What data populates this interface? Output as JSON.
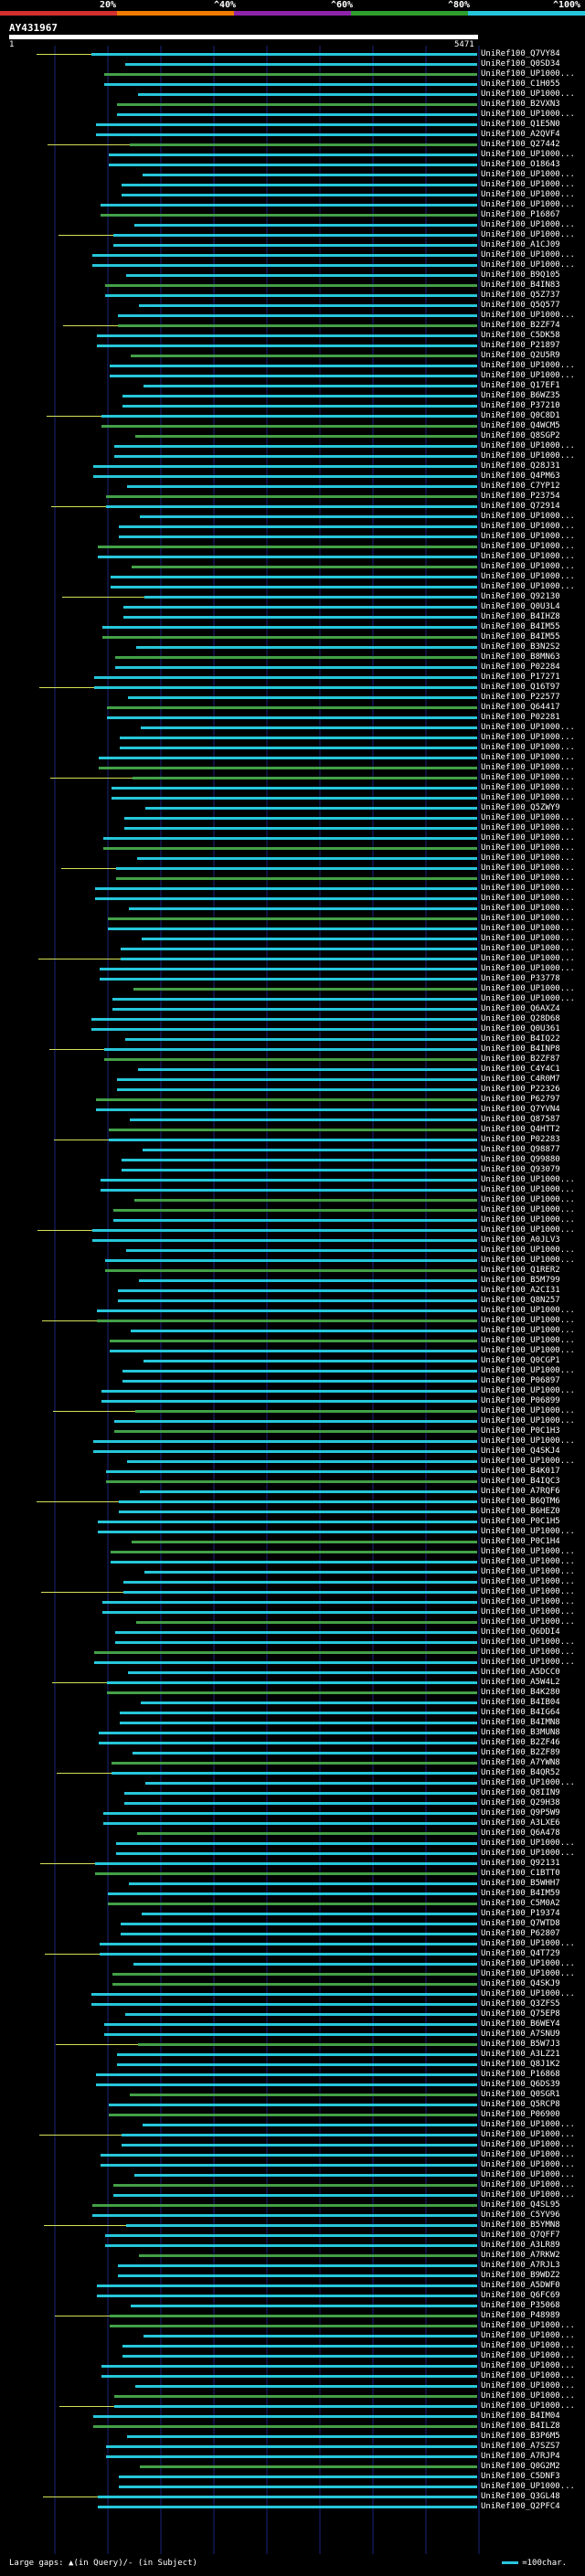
{
  "scale": {
    "labels": [
      "20%",
      "^40%",
      "^60%",
      "^80%",
      "^100%"
    ],
    "bands": [
      "#d32f2f",
      "#ef7c00",
      "#8e24aa",
      "#2e9e2e",
      "#26c6da"
    ]
  },
  "query": {
    "name": "AY431967",
    "start": "1",
    "end": "5471"
  },
  "colors": {
    "high": "#26c6da",
    "mid": "#43a047",
    "gap": "#d4e157"
  },
  "footer": {
    "legend": "Large gaps: ▲(in Query)/- (in Subject)",
    "unit": "=100char."
  },
  "hits": [
    "UniRef100_Q7VY84",
    "UniRef100_Q0SD34",
    "UniRef100_UP1000...",
    "UniRef100_C1H055",
    "UniRef100_UP1000...",
    "UniRef100_B2VXN3",
    "UniRef100_UP1000...",
    "UniRef100_Q1E5N0",
    "UniRef100_A2QVF4",
    "UniRef100_Q27442",
    "UniRef100_UP1000...",
    "UniRef100_O18643",
    "UniRef100_UP1000...",
    "UniRef100_UP1000...",
    "UniRef100_UP1000...",
    "UniRef100_UP1000...",
    "UniRef100_P16867",
    "UniRef100_UP1000...",
    "UniRef100_UP1000...",
    "UniRef100_A1CJ09",
    "UniRef100_UP1000...",
    "UniRef100_UP1000...",
    "UniRef100_B9Q105",
    "UniRef100_B4IN83",
    "UniRef100_Q5Z737",
    "UniRef100_Q5Q577",
    "UniRef100_UP1000...",
    "UniRef100_B2ZF74",
    "UniRef100_C5DK58",
    "UniRef100_P21897",
    "UniRef100_Q2U5R9",
    "UniRef100_UP1000...",
    "UniRef100_UP1000...",
    "UniRef100_Q17EF1",
    "UniRef100_B6WZ35",
    "UniRef100_P37210",
    "UniRef100_Q0C8D1",
    "UniRef100_Q4WCM5",
    "UniRef100_Q8SGP2",
    "UniRef100_UP1000...",
    "UniRef100_UP1000...",
    "UniRef100_Q28J31",
    "UniRef100_Q4PM63",
    "UniRef100_C7YP12",
    "UniRef100_P23754",
    "UniRef100_Q72914",
    "UniRef100_UP1000...",
    "UniRef100_UP1000...",
    "UniRef100_UP1000...",
    "UniRef100_UP1000...",
    "UniRef100_UP1000...",
    "UniRef100_UP1000...",
    "UniRef100_UP1000...",
    "UniRef100_UP1000...",
    "UniRef100_Q92130",
    "UniRef100_Q0U3L4",
    "UniRef100_B4IHZ8",
    "UniRef100_B4IM55",
    "UniRef100_B4IM55",
    "UniRef100_B3N2S2",
    "UniRef100_B8MN63",
    "UniRef100_P02284",
    "UniRef100_P17271",
    "UniRef100_Q16T97",
    "UniRef100_P22577",
    "UniRef100_Q64417",
    "UniRef100_P02281",
    "UniRef100_UP1000...",
    "UniRef100_UP1000...",
    "UniRef100_UP1000...",
    "UniRef100_UP1000...",
    "UniRef100_UP1000...",
    "UniRef100_UP1000...",
    "UniRef100_UP1000...",
    "UniRef100_UP1000...",
    "UniRef100_Q5ZWY9",
    "UniRef100_UP1000...",
    "UniRef100_UP1000...",
    "UniRef100_UP1000...",
    "UniRef100_UP1000...",
    "UniRef100_UP1000...",
    "UniRef100_UP1000...",
    "UniRef100_UP1000...",
    "UniRef100_UP1000...",
    "UniRef100_UP1000...",
    "UniRef100_UP1000...",
    "UniRef100_UP1000...",
    "UniRef100_UP1000...",
    "UniRef100_UP1000...",
    "UniRef100_UP1000...",
    "UniRef100_UP1000...",
    "UniRef100_UP1000...",
    "UniRef100_P33778",
    "UniRef100_UP1000...",
    "UniRef100_UP1000...",
    "UniRef100_Q6AXZ4",
    "UniRef100_Q28D68",
    "UniRef100_Q0U361",
    "UniRef100_B4IQ22",
    "UniRef100_B4INP8",
    "UniRef100_B2ZF87",
    "UniRef100_C4Y4C1",
    "UniRef100_C4R0M7",
    "UniRef100_P22326",
    "UniRef100_P62797",
    "UniRef100_Q7YVN4",
    "UniRef100_Q87587",
    "UniRef100_Q4HTT2",
    "UniRef100_P02283",
    "UniRef100_Q98877",
    "UniRef100_Q99880",
    "UniRef100_Q93079",
    "UniRef100_UP1000...",
    "UniRef100_UP1000...",
    "UniRef100_UP1000...",
    "UniRef100_UP1000...",
    "UniRef100_UP1000...",
    "UniRef100_UP1000...",
    "UniRef100_A0JLV3",
    "UniRef100_UP1000...",
    "UniRef100_UP1000...",
    "UniRef100_Q1RER2",
    "UniRef100_B5M799",
    "UniRef100_A2CI31",
    "UniRef100_Q8N257",
    "UniRef100_UP1000...",
    "UniRef100_UP1000...",
    "UniRef100_UP1000...",
    "UniRef100_UP1000...",
    "UniRef100_UP1000...",
    "UniRef100_Q0CGP1",
    "UniRef100_UP1000...",
    "UniRef100_P06897",
    "UniRef100_UP1000...",
    "UniRef100_P06899",
    "UniRef100_UP1000...",
    "UniRef100_UP1000...",
    "UniRef100_P0C1H3",
    "UniRef100_UP1000...",
    "UniRef100_Q4SKJ4",
    "UniRef100_UP1000...",
    "UniRef100_B4K017",
    "UniRef100_B4IQC3",
    "UniRef100_A7RQF6",
    "UniRef100_B6QTM6",
    "UniRef100_B6HEZ0",
    "UniRef100_P0C1H5",
    "UniRef100_UP1000...",
    "UniRef100_P0C1H4",
    "UniRef100_UP1000...",
    "UniRef100_UP1000...",
    "UniRef100_UP1000...",
    "UniRef100_UP1000...",
    "UniRef100_UP1000...",
    "UniRef100_UP1000...",
    "UniRef100_UP1000...",
    "UniRef100_UP1000...",
    "UniRef100_Q6DDI4",
    "UniRef100_UP1000...",
    "UniRef100_UP1000...",
    "UniRef100_UP1000...",
    "UniRef100_A5DCC0",
    "UniRef100_A5W4L2",
    "UniRef100_B4K280",
    "UniRef100_B4IB04",
    "UniRef100_B4IG64",
    "UniRef100_B4IMN8",
    "UniRef100_B3MUN8",
    "UniRef100_B2ZF46",
    "UniRef100_B2ZF89",
    "UniRef100_A7YWN8",
    "UniRef100_B4QR52",
    "UniRef100_UP1000...",
    "UniRef100_Q8IIN9",
    "UniRef100_Q29H38",
    "UniRef100_Q9P5W9",
    "UniRef100_A3LXE6",
    "UniRef100_Q6A478",
    "UniRef100_UP1000...",
    "UniRef100_UP1000...",
    "UniRef100_Q92131",
    "UniRef100_C1BTT0",
    "UniRef100_B5WHH7",
    "UniRef100_B4IM59",
    "UniRef100_C5M0A2",
    "UniRef100_P19374",
    "UniRef100_Q7WTD8",
    "UniRef100_P62807",
    "UniRef100_UP1000...",
    "UniRef100_Q4T729",
    "UniRef100_UP1000...",
    "UniRef100_UP1000...",
    "UniRef100_Q4SKJ9",
    "UniRef100_UP1000...",
    "UniRef100_Q3ZFS5",
    "UniRef100_Q75EP8",
    "UniRef100_B6WEY4",
    "UniRef100_A7SNU9",
    "UniRef100_B5W7J3",
    "UniRef100_A3LZ21",
    "UniRef100_Q8J1K2",
    "UniRef100_P16868",
    "UniRef100_Q6DS39",
    "UniRef100_Q0SGR1",
    "UniRef100_Q5RCP8",
    "UniRef100_P06900",
    "UniRef100_UP1000...",
    "UniRef100_UP1000...",
    "UniRef100_UP1000...",
    "UniRef100_UP1000...",
    "UniRef100_UP1000...",
    "UniRef100_UP1000...",
    "UniRef100_UP1000...",
    "UniRef100_UP1000...",
    "UniRef100_Q4SL95",
    "UniRef100_C5YV96",
    "UniRef100_B5YMN8",
    "UniRef100_Q7QFF7",
    "UniRef100_A3LR89",
    "UniRef100_A7RKW2",
    "UniRef100_A7RJL3",
    "UniRef100_B9WDZ2",
    "UniRef100_A5DWF0",
    "UniRef100_Q6FC69",
    "UniRef100_P35068",
    "UniRef100_P48989",
    "UniRef100_UP1000...",
    "UniRef100_UP1000...",
    "UniRef100_UP1000...",
    "UniRef100_UP1000...",
    "UniRef100_UP1000...",
    "UniRef100_UP1000...",
    "UniRef100_UP1000...",
    "UniRef100_UP1000...",
    "UniRef100_UP1000...",
    "UniRef100_B4IM04",
    "UniRef100_B4ILZ8",
    "UniRef100_B3P6M5",
    "UniRef100_A7SZS7",
    "UniRef100_A7RJP4",
    "UniRef100_Q0G2M2",
    "UniRef100_C5DNF3",
    "UniRef100_UP1000...",
    "UniRef100_Q3GL48",
    "UniRef100_Q2PFC4"
  ]
}
